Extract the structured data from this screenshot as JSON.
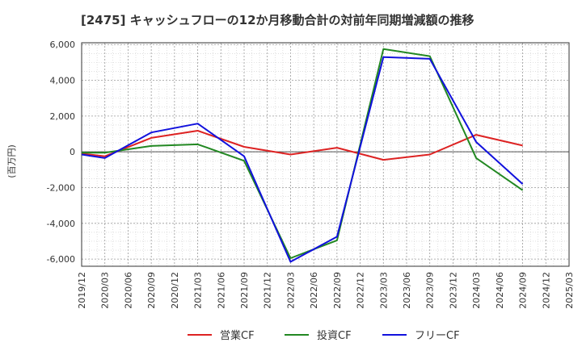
{
  "chart_data": {
    "type": "line",
    "title": "[2475]  キャッシュフローの12か月移動合計の対前年同期増減額の推移",
    "ylabel": "(百万円)",
    "xlabel": "",
    "ylim": [
      -6400,
      6100
    ],
    "yticks": [
      6000,
      4000,
      2000,
      0,
      -2000,
      -4000,
      -6000
    ],
    "ytick_labels": [
      "6,000",
      "4,000",
      "2,000",
      "0",
      "-2,000",
      "-4,000",
      "-6,000"
    ],
    "x": [
      "2019/12",
      "2020/03",
      "2020/06",
      "2020/09",
      "2020/12",
      "2021/03",
      "2021/06",
      "2021/09",
      "2021/12",
      "2022/03",
      "2022/06",
      "2022/09",
      "2022/12",
      "2023/03",
      "2023/06",
      "2023/09",
      "2023/12",
      "2024/03",
      "2024/06",
      "2024/09",
      "2024/12",
      "2025/03"
    ],
    "grid": true,
    "legend_position": "bottom",
    "series": [
      {
        "name": "営業CF",
        "color": "#dd2222",
        "values": [
          -100,
          -250,
          null,
          780,
          null,
          1180,
          null,
          280,
          null,
          -150,
          null,
          230,
          null,
          -450,
          null,
          -150,
          null,
          950,
          null,
          350,
          null,
          null
        ]
      },
      {
        "name": "投資CF",
        "color": "#228822",
        "values": [
          -50,
          -50,
          null,
          330,
          null,
          420,
          null,
          -500,
          null,
          -5950,
          null,
          -4950,
          null,
          5750,
          null,
          5350,
          null,
          -350,
          null,
          -2150,
          null,
          null
        ]
      },
      {
        "name": "フリーCF",
        "color": "#1111dd",
        "values": [
          -150,
          -350,
          null,
          1080,
          null,
          1580,
          null,
          -250,
          null,
          -6150,
          null,
          -4750,
          null,
          5300,
          null,
          5200,
          null,
          550,
          null,
          -1800,
          null,
          null
        ]
      }
    ]
  }
}
